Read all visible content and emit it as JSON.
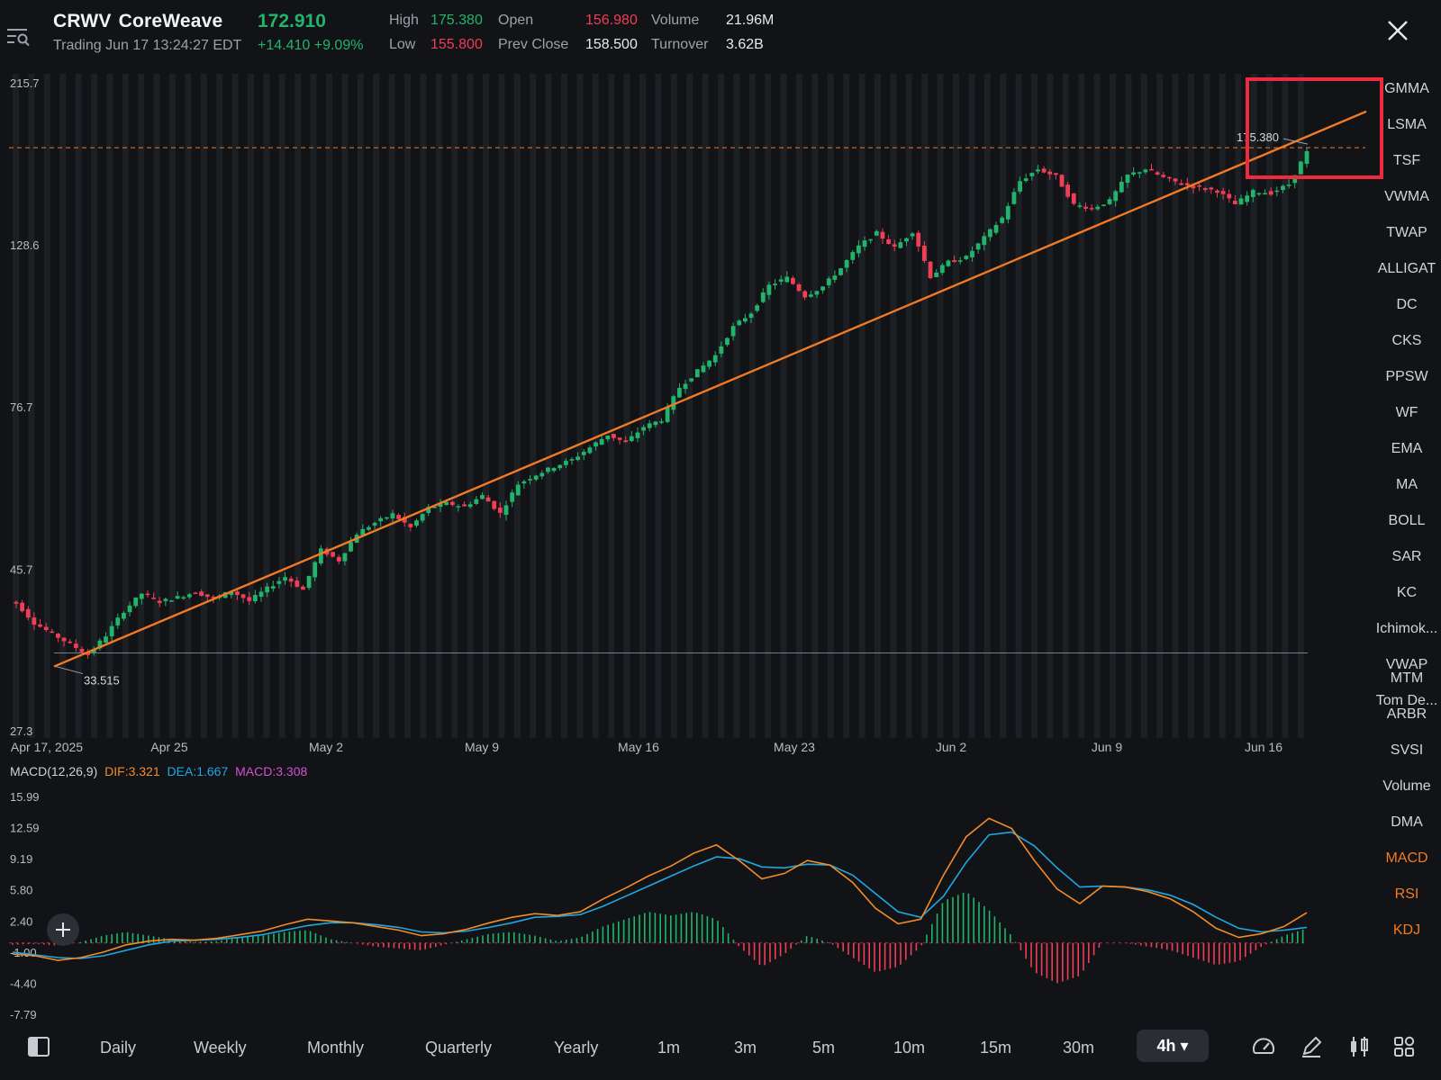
{
  "header": {
    "symbol": "CRWV",
    "company": "CoreWeave",
    "price": "172.910",
    "trading_status": "Trading Jun 17 13:24:27 EDT",
    "change": "+14.410 +9.09%",
    "stats": {
      "high_label": "High",
      "high": "175.380",
      "low_label": "Low",
      "low": "155.800",
      "open_label": "Open",
      "open": "156.980",
      "prev_close_label": "Prev Close",
      "prev_close": "158.500",
      "volume_label": "Volume",
      "volume": "21.96M",
      "turnover_label": "Turnover",
      "turnover": "3.62B"
    }
  },
  "icons": {
    "menu": "settings-search-icon",
    "close": "close-icon",
    "layout": "layout-toggle-icon",
    "add": "plus-icon",
    "speed": "gauge-icon",
    "draw": "pencil-icon",
    "chart_type": "candlestick-icon",
    "grid": "grid-icon"
  },
  "colors": {
    "up": "#22b46b",
    "down": "#ef3e55",
    "trendline": "#f27a25",
    "dif": "#f28c28",
    "dea": "#1fa8e0",
    "macd_label": "#d250d8",
    "highlight_box": "#ef2a3c",
    "background": "#111317"
  },
  "chart_data": {
    "type": "candlestick",
    "y_scale": "log",
    "price_axis_ticks": [
      "215.7",
      "128.6",
      "76.7",
      "45.7",
      "27.3"
    ],
    "date_axis_ticks": [
      "Apr 17, 2025",
      "Apr 25",
      "May 2",
      "May 9",
      "May 16",
      "May 23",
      "Jun 2",
      "Jun 9",
      "Jun 16"
    ],
    "period_range": [
      "2025-04-17",
      "2025-06-17"
    ],
    "interval": "4h",
    "high_annotation": "175.380",
    "low_annotation": "33.515",
    "close_price_approx": [
      41.0,
      38.5,
      37.2,
      36.0,
      34.8,
      37.0,
      40.0,
      42.3,
      41.2,
      41.8,
      42.5,
      41.6,
      42.6,
      41.3,
      43.0,
      44.6,
      42.8,
      48.6,
      47.0,
      51.2,
      53.0,
      54.5,
      52.2,
      55.6,
      56.4,
      55.8,
      57.8,
      54.6,
      60.0,
      61.8,
      63.4,
      64.8,
      67.4,
      70.2,
      68.4,
      72.0,
      73.6,
      81.6,
      86.0,
      90.4,
      99.0,
      103.6,
      113.0,
      115.8,
      109.2,
      112.6,
      119.4,
      128.0,
      133.6,
      127.4,
      134.2,
      116.2,
      121.8,
      123.6,
      131.6,
      140.2,
      157.6,
      163.8,
      160.0,
      146.2,
      144.6,
      148.0,
      160.6,
      163.8,
      159.4,
      156.2,
      154.2,
      152.8,
      146.4,
      152.4,
      151.8,
      156.0,
      172.9
    ],
    "trendline": {
      "from_price": 33.515,
      "to_price": 175.38,
      "color": "trendline"
    },
    "support_line_price": 35.0,
    "resistance_dashed_price": 175.38,
    "highlight_region": "latest-bars"
  },
  "macd": {
    "title": "MACD(12,26,9)",
    "dif": "DIF:3.321",
    "dea": "DEA:1.667",
    "macd": "MACD:3.308",
    "axis_ticks": [
      "15.99",
      "12.59",
      "9.19",
      "5.80",
      "2.40",
      "-1.00",
      "-4.40",
      "-7.79"
    ],
    "dif_values_approx": [
      -1.2,
      -1.4,
      -1.9,
      -1.6,
      -1.0,
      -0.2,
      0.2,
      0.4,
      0.3,
      0.5,
      0.9,
      1.3,
      2.0,
      2.6,
      2.4,
      2.2,
      1.8,
      1.4,
      0.8,
      1.0,
      1.5,
      2.2,
      2.8,
      3.2,
      3.0,
      3.4,
      4.8,
      6.0,
      7.3,
      8.4,
      9.8,
      10.7,
      9.0,
      7.0,
      7.6,
      9.0,
      8.5,
      6.6,
      3.8,
      2.1,
      2.6,
      7.4,
      11.6,
      13.6,
      12.5,
      9.0,
      5.9,
      4.3,
      6.2,
      6.1,
      5.6,
      4.8,
      3.4,
      1.6,
      0.6,
      1.0,
      1.8,
      3.3
    ],
    "dea_values_approx": [
      -1.0,
      -1.3,
      -1.6,
      -1.7,
      -1.4,
      -0.8,
      -0.2,
      0.2,
      0.3,
      0.4,
      0.6,
      0.9,
      1.4,
      1.9,
      2.2,
      2.2,
      2.0,
      1.7,
      1.2,
      1.1,
      1.3,
      1.7,
      2.2,
      2.8,
      2.9,
      3.1,
      4.0,
      5.1,
      6.2,
      7.3,
      8.4,
      9.4,
      9.2,
      8.3,
      8.2,
      8.6,
      8.5,
      7.4,
      5.4,
      3.4,
      2.8,
      5.1,
      8.8,
      11.8,
      12.1,
      10.6,
      8.2,
      6.1,
      6.2,
      6.1,
      5.8,
      5.2,
      4.2,
      2.8,
      1.6,
      1.2,
      1.4,
      1.7
    ],
    "histogram_values_approx": [
      -0.2,
      -0.1,
      -0.3,
      0.1,
      0.8,
      1.2,
      0.8,
      0.4,
      0.1,
      0.2,
      0.6,
      0.8,
      1.2,
      1.4,
      0.4,
      0.0,
      -0.4,
      -0.6,
      -0.8,
      -0.2,
      0.4,
      1.0,
      1.2,
      0.8,
      0.2,
      0.6,
      1.8,
      2.6,
      3.4,
      3.0,
      3.4,
      2.6,
      -0.4,
      -2.6,
      -1.2,
      0.8,
      0.0,
      -1.6,
      -3.2,
      -2.6,
      -0.4,
      4.6,
      5.6,
      3.6,
      0.8,
      -3.2,
      -4.4,
      -3.6,
      0.0,
      0.0,
      -0.4,
      -0.8,
      -1.6,
      -2.4,
      -2.0,
      -0.4,
      0.8,
      1.6
    ]
  },
  "indicators": [
    "GMMA",
    "LSMA",
    "TSF",
    "VWMA",
    "TWAP",
    "ALLIGAT",
    "DC",
    "CKS",
    "PPSW",
    "WF",
    "EMA",
    "MA",
    "BOLL",
    "SAR",
    "KC",
    "Ichimok...",
    "VWAP",
    "Tom De..."
  ],
  "sub_indicators": [
    "MTM",
    "ARBR",
    "SVSI",
    "Volume",
    "DMA",
    "MACD",
    "RSI",
    "KDJ"
  ],
  "active_sub_indicators": [
    "MACD",
    "RSI",
    "KDJ"
  ],
  "timeframes": [
    "Daily",
    "Weekly",
    "Monthly",
    "Quarterly",
    "Yearly",
    "1m",
    "3m",
    "5m",
    "10m",
    "15m",
    "30m"
  ],
  "active_timeframe": "4h ▾"
}
